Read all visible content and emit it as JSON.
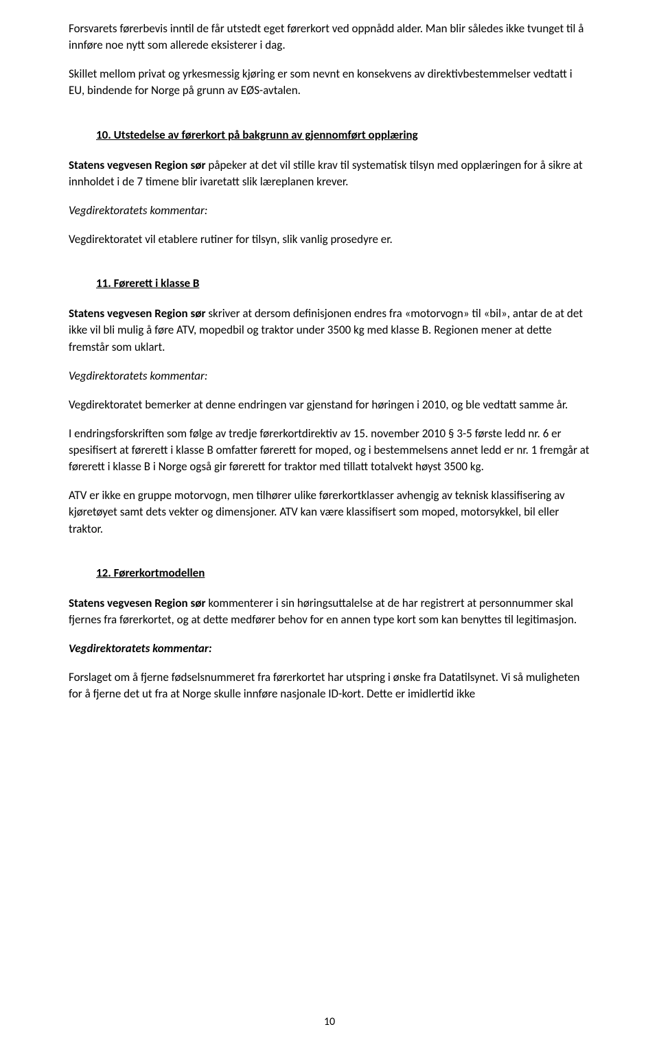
{
  "colors": {
    "background": "#ffffff",
    "text": "#000000"
  },
  "typography": {
    "font_family": "Calibri",
    "body_fontsize_pt": 12,
    "line_height": 1.42
  },
  "paragraphs": {
    "intro1": "Forsvarets førerbevis inntil de får utstedt eget førerkort ved oppnådd alder. Man blir således ikke tvunget til å innføre noe nytt som allerede eksisterer i dag.",
    "intro2": "Skillet mellom privat og yrkesmessig kjøring er som nevnt en konsekvens av direktivbestemmelser vedtatt i EU, bindende for Norge på grunn av EØS-avtalen."
  },
  "section10": {
    "heading": "10. Utstedelse av førerkort på bakgrunn av gjennomført opplæring",
    "p1_lead": "Statens vegvesen Region sør",
    "p1_rest": " påpeker at det vil stille krav til systematisk tilsyn med opplæringen for å sikre at innholdet i de 7 timene blir ivaretatt slik læreplanen krever.",
    "comment_label": "Vegdirektoratets kommentar:",
    "p2": "Vegdirektoratet vil etablere rutiner for tilsyn, slik vanlig prosedyre er."
  },
  "section11": {
    "heading": "11. Førerett i klasse B",
    "p1_lead": "Statens vegvesen Region sør",
    "p1_rest": " skriver at dersom definisjonen endres fra «motorvogn» til «bil», antar de at det ikke vil bli mulig å føre ATV, mopedbil og traktor under 3500 kg med klasse B. Regionen mener at dette fremstår som uklart.",
    "comment_label": "Vegdirektoratets kommentar:",
    "p2": "Vegdirektoratet bemerker at denne endringen var gjenstand for høringen i 2010, og ble vedtatt samme år.",
    "p3": "I endringsforskriften som følge av tredje førerkortdirektiv av 15. november 2010 § 3-5 første ledd nr. 6 er spesifisert at førerett i klasse B omfatter førerett for moped, og i bestemmelsens annet ledd er nr. 1 fremgår at førerett i klasse B i Norge også gir førerett for traktor med tillatt totalvekt høyst 3500 kg.",
    "p4": "ATV er ikke en gruppe motorvogn, men tilhører ulike førerkortklasser avhengig av teknisk klassifisering av kjøretøyet samt dets vekter og dimensjoner. ATV kan være klassifisert som moped, motorsykkel, bil eller traktor."
  },
  "section12": {
    "heading": "12. Førerkortmodellen",
    "p1_lead": "Statens vegvesen Region sør",
    "p1_rest": " kommenterer i sin høringsuttalelse at de har registrert at personnummer skal fjernes fra førerkortet, og at dette medfører behov for en annen type kort som kan benyttes til legitimasjon.",
    "comment_label": "Vegdirektoratets kommentar:",
    "p2": "Forslaget om å fjerne fødselsnummeret fra førerkortet har utspring i ønske fra Datatilsynet. Vi så muligheten for å fjerne det ut fra at Norge skulle innføre nasjonale ID-kort. Dette er imidlertid ikke"
  },
  "page_number": "10"
}
